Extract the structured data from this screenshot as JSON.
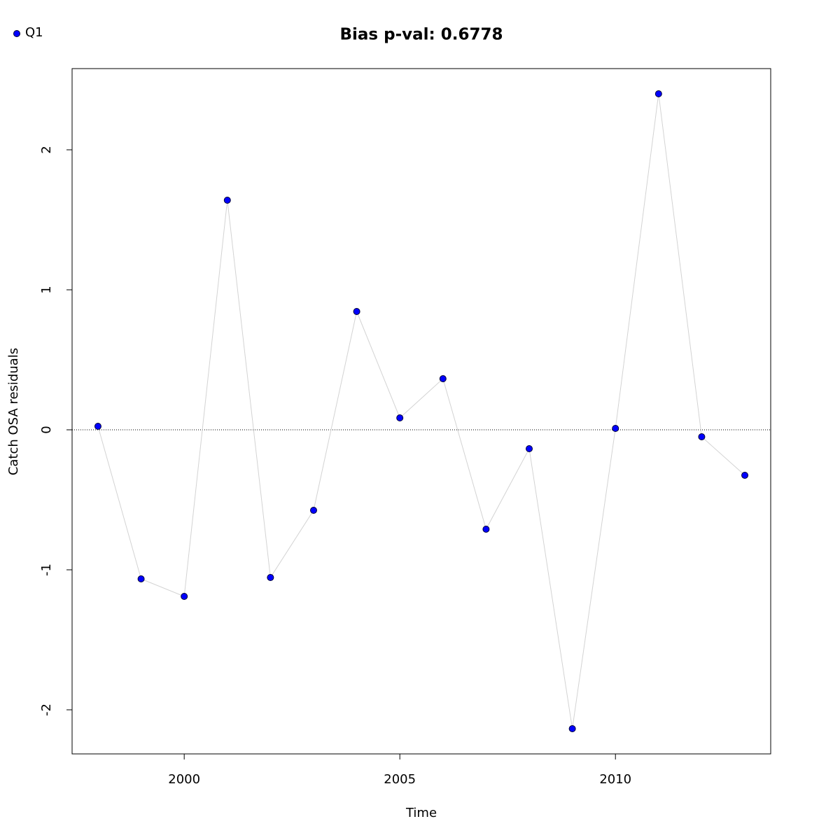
{
  "chart_data": {
    "type": "line",
    "title": "Bias p-val: 0.6778",
    "title_color": "#228B22",
    "x_label": "Time",
    "y_label": "Catch OSA residuals",
    "x": [
      1998,
      1999,
      2000,
      2001,
      2002,
      2003,
      2004,
      2005,
      2006,
      2007,
      2008,
      2009,
      2010,
      2011,
      2012,
      2013
    ],
    "series": [
      {
        "name": "Q1",
        "color": "#0000ff",
        "line_color": "#d3d3d3",
        "values": [
          0.025,
          -1.065,
          -1.19,
          1.64,
          -1.055,
          -0.575,
          0.845,
          0.085,
          0.365,
          -0.71,
          -0.135,
          -2.135,
          0.01,
          2.4,
          -0.05,
          -0.325
        ]
      }
    ],
    "xlim": [
      1997.4,
      2013.6
    ],
    "xticks": [
      2000,
      2005,
      2010
    ],
    "ylim": [
      -2.315,
      2.58
    ],
    "yticks": [
      -2,
      -1,
      0,
      1,
      2
    ],
    "reference_line": 0,
    "legend": "top-left"
  }
}
